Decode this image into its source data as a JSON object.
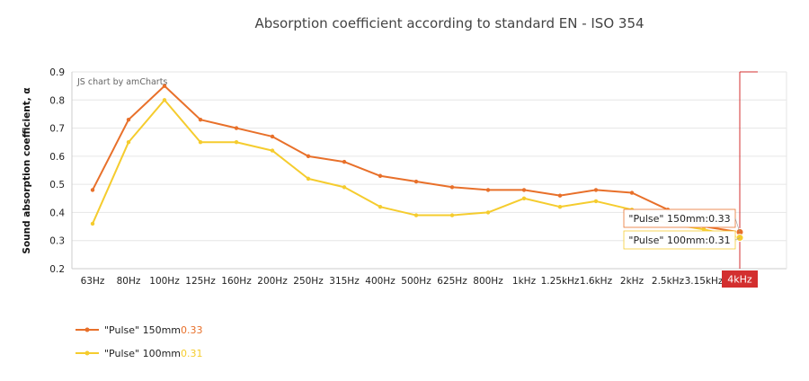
{
  "chart_data": {
    "type": "line",
    "title": "Absorption coefficient according to standard EN - ISO 354",
    "ylabel": "Sound absorption coefficient, α",
    "xlabel": "",
    "ylim": [
      0.2,
      0.9
    ],
    "yticks": [
      "0.2",
      "0.3",
      "0.4",
      "0.5",
      "0.6",
      "0.7",
      "0.8",
      "0.9"
    ],
    "grid": true,
    "legend_position": "bottom-left",
    "categories": [
      "63Hz",
      "80Hz",
      "100Hz",
      "125Hz",
      "160Hz",
      "200Hz",
      "250Hz",
      "315Hz",
      "400Hz",
      "500Hz",
      "625Hz",
      "800Hz",
      "1kHz",
      "1.25kHz",
      "1.6kHz",
      "2kHz",
      "2.5kHz",
      "3.15kHz",
      "4kHz"
    ],
    "series": [
      {
        "name": "\"Pulse\" 150mm",
        "color": "#E8702A",
        "values": [
          0.48,
          0.73,
          0.85,
          0.73,
          0.7,
          0.67,
          0.6,
          0.58,
          0.53,
          0.51,
          0.49,
          0.48,
          0.48,
          0.46,
          0.48,
          0.47,
          0.41,
          0.35,
          0.33
        ],
        "legend_value": "0.33",
        "tooltip": "\"Pulse\" 150mm:0.33"
      },
      {
        "name": "\"Pulse\" 100mm",
        "color": "#F5CC2E",
        "values": [
          0.36,
          0.65,
          0.8,
          0.65,
          0.65,
          0.62,
          0.52,
          0.49,
          0.42,
          0.39,
          0.39,
          0.4,
          0.45,
          0.42,
          0.44,
          0.41,
          0.36,
          0.34,
          0.31
        ],
        "legend_value": "0.31",
        "tooltip": "\"Pulse\" 100mm:0.31"
      }
    ],
    "cursor": {
      "category": "4kHz",
      "color": "#D32F2F"
    },
    "credit": "JS chart by amCharts"
  }
}
